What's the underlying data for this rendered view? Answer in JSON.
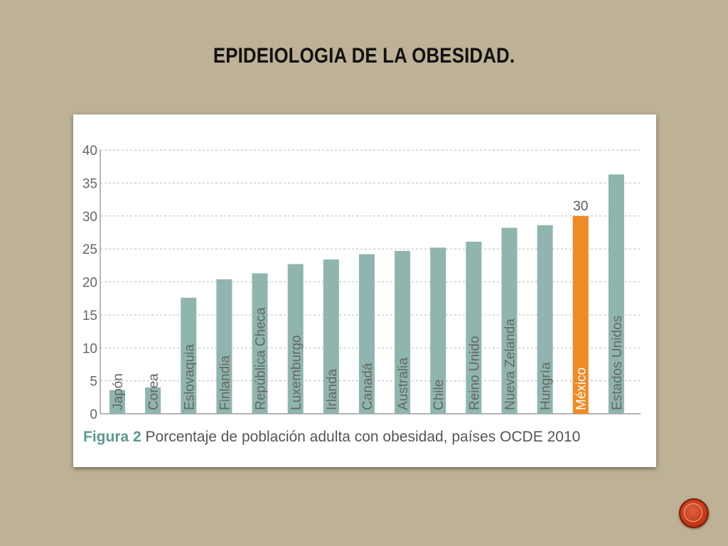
{
  "slide": {
    "title": "EPIDEIOLOGIA DE LA OBESIDAD."
  },
  "caption": {
    "bold": "Figura 2",
    "text": " Porcentaje de población adulta con obesidad, países OCDE 2010"
  },
  "colors": {
    "background": "#bdb196",
    "bar": "#8fb5ae",
    "highlight_bar": "#f08a24",
    "grid": "#c8c8c8"
  },
  "chart_data": {
    "type": "bar",
    "categories": [
      "Japón",
      "Corea",
      "Eslovaquia",
      "Finlandia",
      "República Checa",
      "Luxemburgo",
      "Irlanda",
      "Canadá",
      "Australia",
      "Chile",
      "Reino Unido",
      "Nueva Zelanda",
      "Hungría",
      "México",
      "Estados Unidos"
    ],
    "values": [
      3.6,
      4.0,
      17.6,
      20.4,
      21.3,
      22.7,
      23.4,
      24.2,
      24.7,
      25.2,
      26.1,
      28.2,
      28.6,
      30.0,
      36.3
    ],
    "highlight": "México",
    "data_labels": {
      "México": "30"
    },
    "ylim": [
      0,
      40
    ],
    "yticks": [
      "0",
      "5",
      "10",
      "15",
      "20",
      "25",
      "30",
      "35",
      "40"
    ],
    "grid": true,
    "title": "",
    "xlabel": "",
    "ylabel": ""
  }
}
